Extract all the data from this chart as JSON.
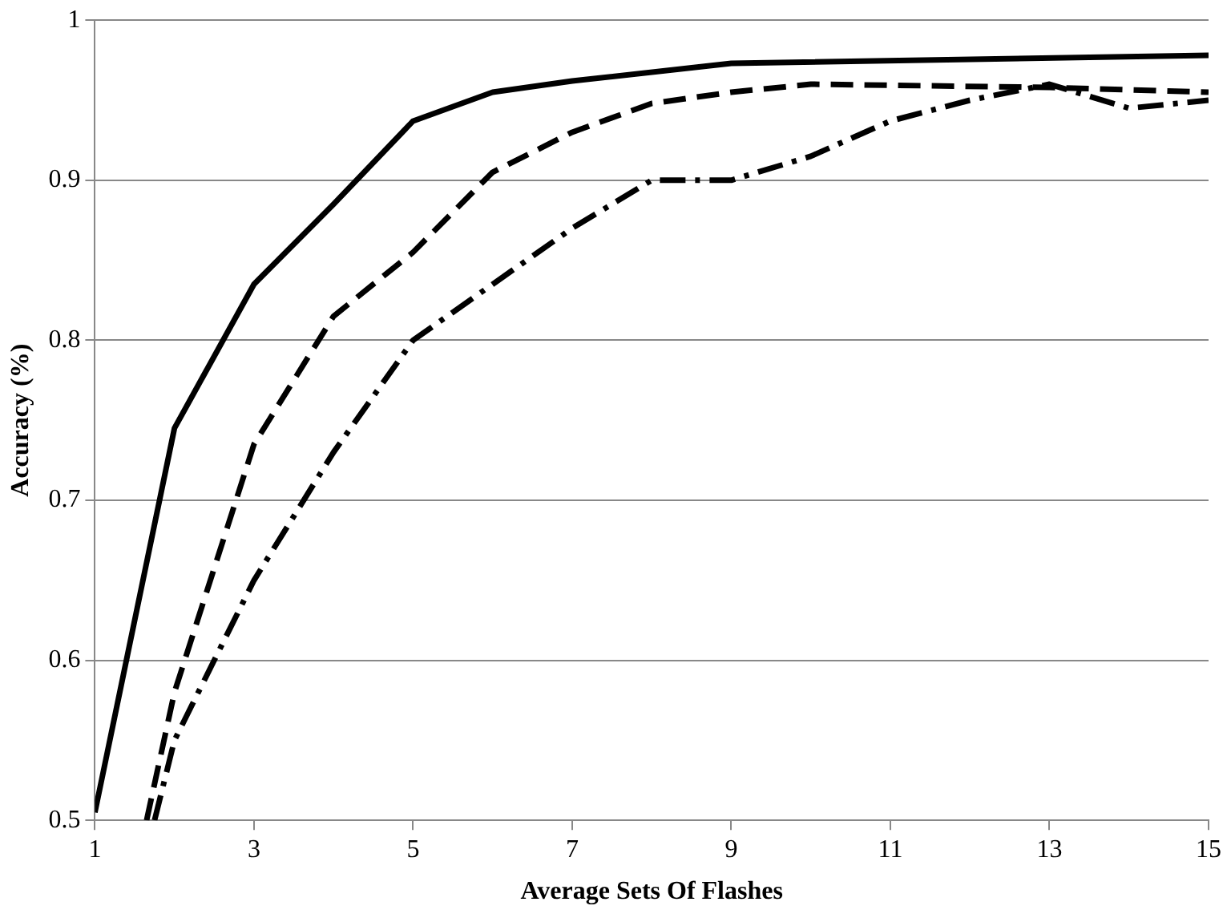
{
  "chart_data": {
    "type": "line",
    "xlabel": "Average Sets Of Flashes",
    "ylabel": "Accuracy (%)",
    "xlim": [
      1,
      15
    ],
    "xticks": [
      1,
      3,
      5,
      7,
      9,
      11,
      13,
      15
    ],
    "ylim": [
      0.5,
      1
    ],
    "yticks": [
      0.5,
      0.6,
      0.7,
      0.8,
      0.9,
      1
    ],
    "grid": "y",
    "legend": false,
    "marker": "none",
    "series": [
      {
        "color": "#000000",
        "line_style": "solid",
        "x": [
          1,
          2,
          3,
          4,
          5,
          6,
          7,
          9,
          15
        ],
        "values": [
          0.505,
          0.745,
          0.835,
          0.885,
          0.937,
          0.955,
          0.962,
          0.973,
          0.978
        ]
      },
      {
        "color": "#000000",
        "line_style": "dashed",
        "x": [
          1.65,
          2,
          3,
          4,
          5,
          6,
          7,
          8,
          9,
          10,
          13,
          15
        ],
        "values": [
          0.5,
          0.58,
          0.735,
          0.815,
          0.855,
          0.905,
          0.93,
          0.948,
          0.955,
          0.96,
          0.958,
          0.955
        ]
      },
      {
        "color": "#000000",
        "line_style": "dashdot",
        "x": [
          1.75,
          2,
          3,
          4,
          5,
          6,
          7,
          8,
          9,
          10,
          11,
          12,
          13,
          14,
          15
        ],
        "values": [
          0.5,
          0.55,
          0.65,
          0.73,
          0.8,
          0.835,
          0.87,
          0.9,
          0.9,
          0.915,
          0.937,
          0.95,
          0.96,
          0.945,
          0.95
        ]
      }
    ]
  }
}
